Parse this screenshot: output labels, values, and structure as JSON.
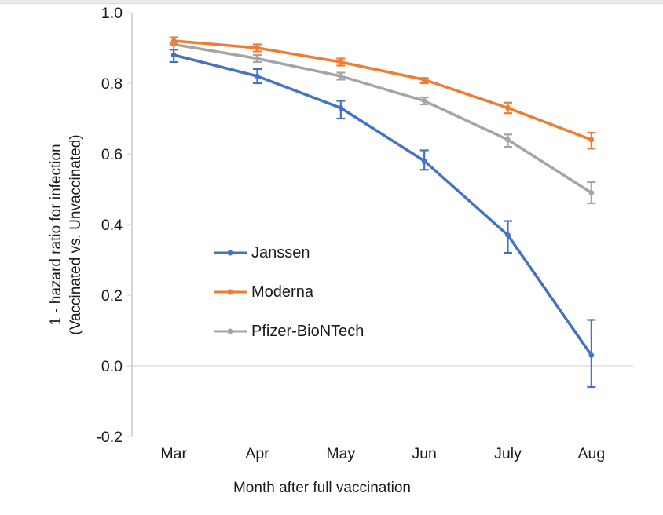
{
  "chart_data": {
    "type": "line",
    "title": "",
    "xlabel": "Month after full vaccination",
    "ylabel_line1": "1 - hazard ratio for infection",
    "ylabel_line2": "(Vaccinated vs. Unvaccinated)",
    "categories": [
      "Mar",
      "Apr",
      "May",
      "Jun",
      "July",
      "Aug"
    ],
    "yticks": [
      1.0,
      0.8,
      0.6,
      0.4,
      0.2,
      0.0,
      -0.2
    ],
    "ytick_labels": [
      "1.0",
      "0.8",
      "0.6",
      "0.4",
      "0.2",
      "0.0",
      "-0.2"
    ],
    "ylim": [
      -0.2,
      1.0
    ],
    "grid": "horizontal-line-at-zero-only",
    "legend_position": "inside-plot-left-middle",
    "marker": "circle",
    "error_bars": true,
    "axis_color": "#bfbfbf",
    "tick_color": "#d9d9d9",
    "gridline_color": "#d9d9d9",
    "text_color": "#1a1a1a",
    "series": [
      {
        "name": "Janssen",
        "color": "#4472C4",
        "values": [
          0.88,
          0.82,
          0.73,
          0.58,
          0.37,
          0.03
        ],
        "err_lo": [
          0.86,
          0.8,
          0.7,
          0.555,
          0.32,
          -0.06
        ],
        "err_hi": [
          0.895,
          0.84,
          0.75,
          0.61,
          0.41,
          0.13
        ]
      },
      {
        "name": "Moderna",
        "color": "#ED7D31",
        "values": [
          0.92,
          0.9,
          0.86,
          0.81,
          0.73,
          0.64
        ],
        "err_lo": [
          0.91,
          0.89,
          0.85,
          0.8,
          0.715,
          0.615
        ],
        "err_hi": [
          0.93,
          0.91,
          0.87,
          0.815,
          0.745,
          0.66
        ]
      },
      {
        "name": "Pfizer-BioNTech",
        "color": "#A5A5A5",
        "values": [
          0.91,
          0.87,
          0.82,
          0.75,
          0.64,
          0.49
        ],
        "err_lo": [
          0.895,
          0.86,
          0.81,
          0.74,
          0.62,
          0.46
        ],
        "err_hi": [
          0.915,
          0.88,
          0.83,
          0.76,
          0.655,
          0.52
        ]
      }
    ]
  }
}
